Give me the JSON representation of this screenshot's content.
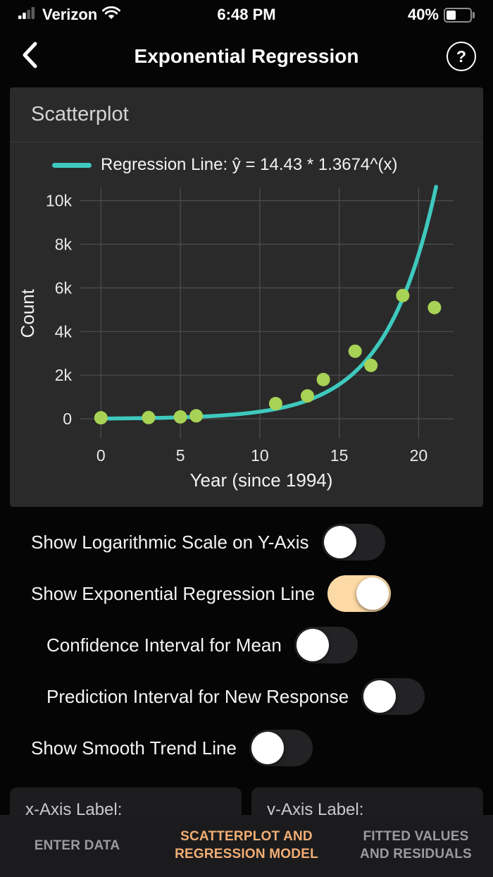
{
  "status_bar": {
    "carrier": "Verizon",
    "time": "6:48 PM",
    "battery": "40%"
  },
  "nav": {
    "title": "Exponential Regression",
    "help_label": "?"
  },
  "card": {
    "title": "Scatterplot"
  },
  "chart_data": {
    "type": "scatter",
    "legend": "Regression Line: ŷ = 14.43 * 1.3674^(x)",
    "xlabel": "Year (since 1994)",
    "ylabel": "Count",
    "xlim": [
      -1.3,
      22.2
    ],
    "ylim": [
      -900,
      10600
    ],
    "x_ticks": [
      0,
      5,
      10,
      15,
      20
    ],
    "y_ticks": [
      0,
      2000,
      4000,
      6000,
      8000,
      10000
    ],
    "y_tick_labels": [
      "0",
      "2k",
      "4k",
      "6k",
      "8k",
      "10k"
    ],
    "grid": true,
    "points": {
      "x": [
        0,
        3,
        5,
        6,
        11,
        13,
        14,
        16,
        17,
        19,
        21
      ],
      "y": [
        50,
        60,
        90,
        140,
        700,
        1050,
        1800,
        3100,
        2450,
        5650,
        5100
      ]
    },
    "regression": {
      "a": 14.43,
      "b": 1.3674,
      "x_start": 0,
      "x_end": 21.1
    },
    "colors": {
      "line": "#3ec9bd",
      "point": "#a8d255",
      "grid": "#4e4e50",
      "tick_text": "#e9e9e9"
    }
  },
  "toggles": [
    {
      "label": "Show Logarithmic Scale on Y-Axis",
      "on": false,
      "indent": false
    },
    {
      "label": "Show Exponential Regression Line",
      "on": true,
      "indent": false
    },
    {
      "label": "Confidence Interval for Mean",
      "on": false,
      "indent": true
    },
    {
      "label": "Prediction Interval for New Response",
      "on": false,
      "indent": true
    },
    {
      "label": "Show Smooth Trend Line",
      "on": false,
      "indent": false
    }
  ],
  "fields": [
    {
      "label": "x-Axis Label:"
    },
    {
      "label": "y-Axis Label:"
    }
  ],
  "tab_bar": [
    {
      "label": "ENTER DATA",
      "active": false
    },
    {
      "label": "SCATTERPLOT AND REGRESSION MODEL",
      "active": true
    },
    {
      "label": "FITTED VALUES AND RESIDUALS",
      "active": false
    }
  ]
}
